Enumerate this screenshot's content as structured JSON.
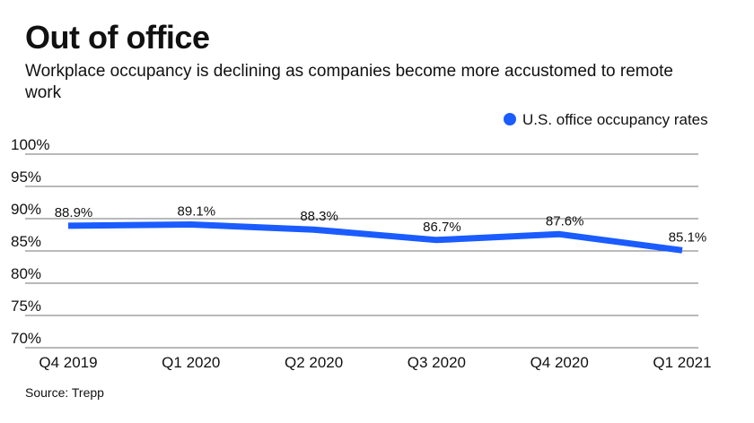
{
  "title": "Out of office",
  "subtitle": "Workplace occupancy is declining as companies become more accustomed to remote work",
  "source": "Source: Trepp",
  "colors": {
    "series": "#1a5cff",
    "grid": "#444444"
  },
  "chart_data": {
    "type": "line",
    "categories": [
      "Q4 2019",
      "Q1 2020",
      "Q2 2020",
      "Q3 2020",
      "Q4 2020",
      "Q1 2021"
    ],
    "series": [
      {
        "name": "U.S. office occupancy rates",
        "values": [
          88.9,
          89.1,
          88.3,
          86.7,
          87.6,
          85.1
        ],
        "labels": [
          "88.9%",
          "89.1%",
          "88.3%",
          "86.7%",
          "87.6%",
          "85.1%"
        ]
      }
    ],
    "yticks": [
      70,
      75,
      80,
      85,
      90,
      95,
      100
    ],
    "ytick_labels": [
      "70%",
      "75%",
      "80%",
      "85%",
      "90%",
      "95%",
      "100%"
    ],
    "ylim": [
      70,
      100
    ],
    "grid": true,
    "legend": "top-right"
  }
}
